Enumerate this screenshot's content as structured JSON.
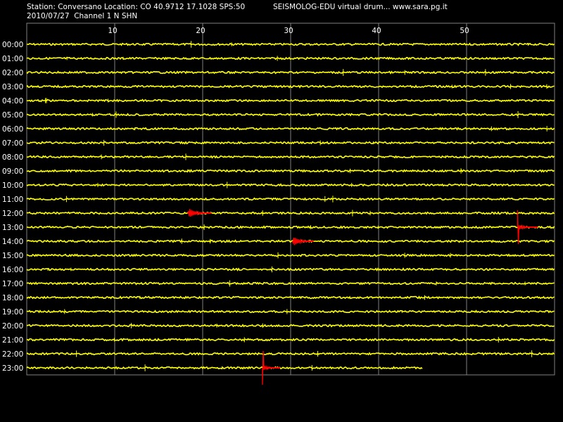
{
  "header": {
    "station_line": "Station: Conversano Location: CO 40.9712 17.1028 SPS:50",
    "source_line": "SEISMOLOG-EDU virtual drum... www.sara.pg.it",
    "date_line": "2010/07/27  Channel 1 N SHN"
  },
  "colors": {
    "background": "#000000",
    "trace": "#ffff00",
    "event": "#ff0000",
    "grid": "#808080",
    "text": "#ffffff"
  },
  "axis": {
    "minute_ticks": [
      10,
      20,
      30,
      40,
      50
    ],
    "minute_range": [
      0,
      60
    ],
    "hours": [
      "00:00",
      "01:00",
      "02:00",
      "03:00",
      "04:00",
      "05:00",
      "06:00",
      "07:00",
      "08:00",
      "09:00",
      "10:00",
      "11:00",
      "12:00",
      "13:00",
      "14:00",
      "15:00",
      "16:00",
      "17:00",
      "18:00",
      "19:00",
      "20:00",
      "21:00",
      "22:00",
      "23:00"
    ]
  },
  "recording": {
    "last_row_end_minute": 45,
    "events": [
      {
        "hour": "12:00",
        "start_minute": 18.3,
        "end_minute": 21.0,
        "amplitude": "medium"
      },
      {
        "hour": "13:00",
        "start_minute": 55.8,
        "end_minute": 58.1,
        "amplitude": "high"
      },
      {
        "hour": "14:00",
        "start_minute": 30.2,
        "end_minute": 32.6,
        "amplitude": "medium"
      },
      {
        "hour": "23:00",
        "start_minute": 26.8,
        "end_minute": 28.8,
        "amplitude": "high"
      }
    ]
  }
}
